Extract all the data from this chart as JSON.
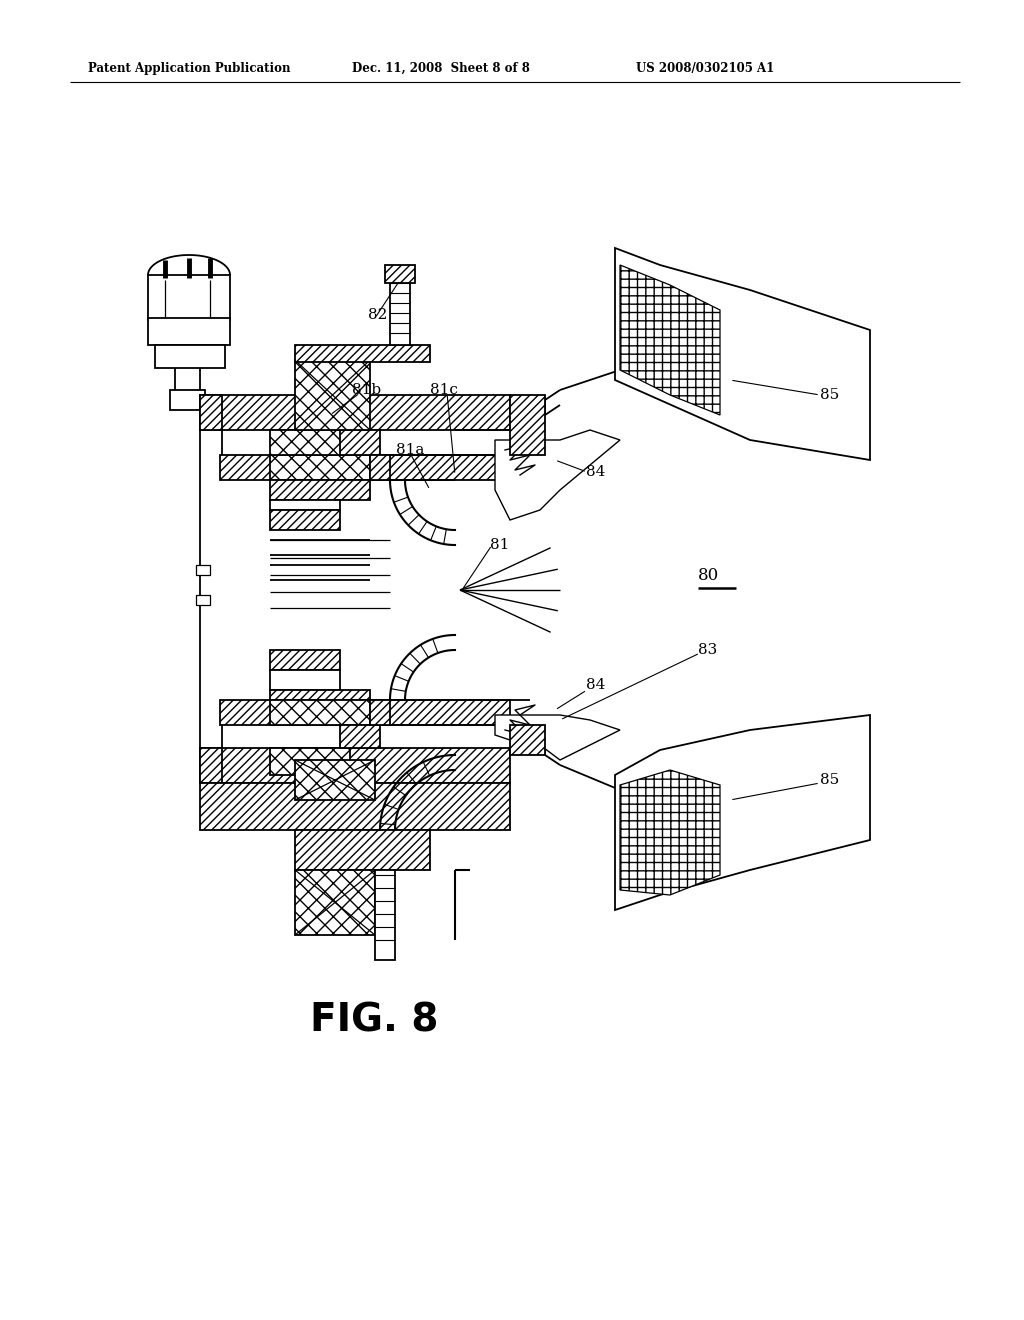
{
  "bg_color": "#ffffff",
  "line_color": "#000000",
  "header_left": "Patent Application Publication",
  "header_mid": "Dec. 11, 2008  Sheet 8 of 8",
  "header_right": "US 2008/0302105 A1",
  "figure_label": "FIG. 8"
}
